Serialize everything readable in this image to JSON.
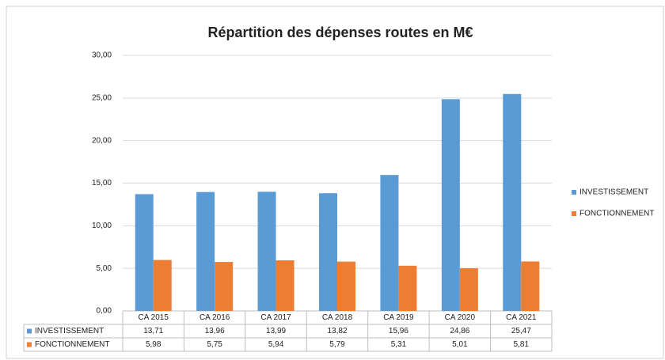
{
  "chart_data": {
    "type": "bar",
    "title": "Répartition des dépenses routes en M€",
    "categories": [
      "CA 2015",
      "CA 2016",
      "CA 2017",
      "CA 2018",
      "CA 2019",
      "CA 2020",
      "CA 2021"
    ],
    "series": [
      {
        "name": "INVESTISSEMENT",
        "color": "#5b9bd5",
        "values": [
          13.71,
          13.96,
          13.99,
          13.82,
          15.96,
          24.86,
          25.47
        ],
        "value_labels": [
          "13,71",
          "13,96",
          "13,99",
          "13,82",
          "15,96",
          "24,86",
          "25,47"
        ]
      },
      {
        "name": "FONCTIONNEMENT",
        "color": "#ed7d31",
        "values": [
          5.98,
          5.75,
          5.94,
          5.79,
          5.31,
          5.01,
          5.81
        ],
        "value_labels": [
          "5,98",
          "5,75",
          "5,94",
          "5,79",
          "5,31",
          "5,01",
          "5,81"
        ]
      }
    ],
    "ylim": [
      0,
      30
    ],
    "yticks": [
      {
        "value": 0,
        "label": "0,00"
      },
      {
        "value": 5,
        "label": "5,00"
      },
      {
        "value": 10,
        "label": "10,00"
      },
      {
        "value": 15,
        "label": "15,00"
      },
      {
        "value": 20,
        "label": "20,00"
      },
      {
        "value": 25,
        "label": "25,00"
      },
      {
        "value": 30,
        "label": "30,00"
      }
    ],
    "grid": true,
    "legend": "right"
  }
}
